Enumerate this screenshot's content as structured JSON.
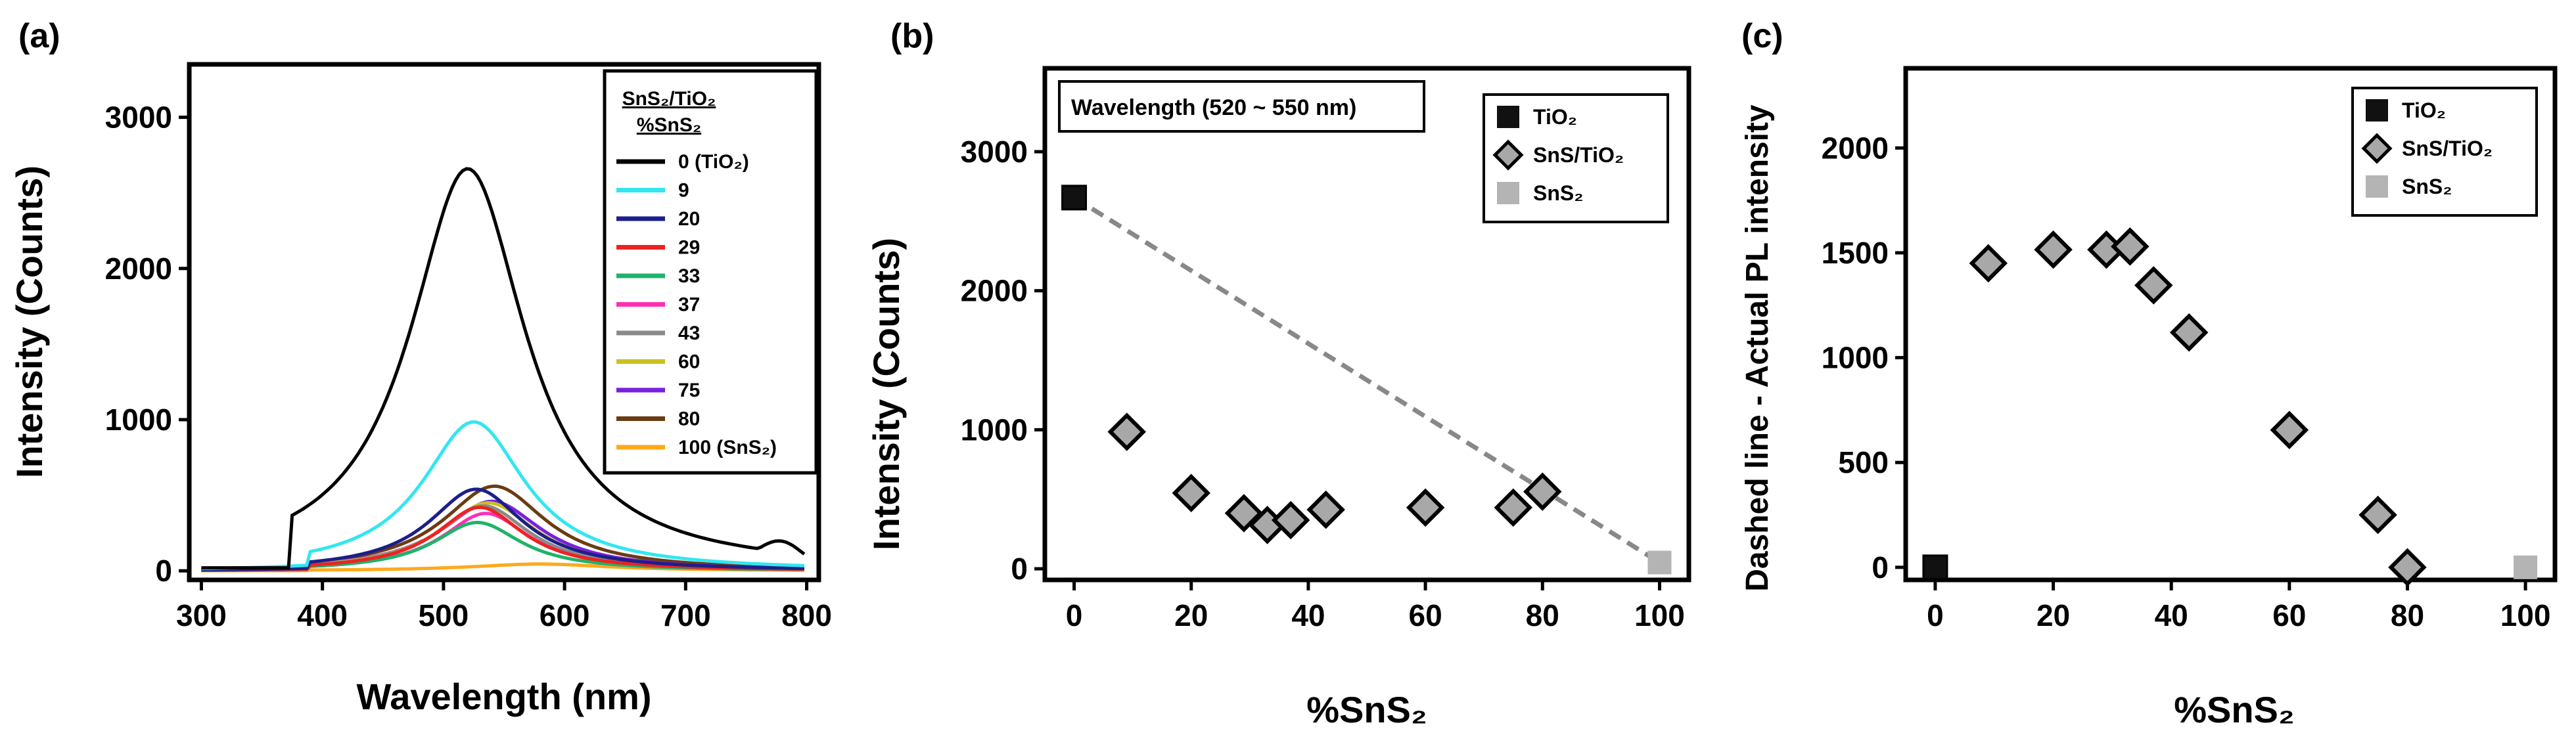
{
  "chart_data": [
    {
      "panel": "(a)",
      "type": "line",
      "xlabel": "Wavelength (nm)",
      "ylabel": "Intensity (Counts)",
      "xlim": [
        290,
        810
      ],
      "ylim": [
        -60,
        3350
      ],
      "xticks": [
        300,
        400,
        500,
        600,
        700,
        800
      ],
      "yticks": [
        0,
        1000,
        2000,
        3000
      ],
      "legend": {
        "title": "SnS₂/TiO₂",
        "subtitle": "%SnS₂",
        "placement": "top-right",
        "entries": [
          {
            "label": "0 (TiO₂)",
            "color": "#000000",
            "peak": 2660,
            "center": 520,
            "width": 58
          },
          {
            "label": "9",
            "color": "#33e6f0",
            "peak": 985,
            "center": 525,
            "width": 52
          },
          {
            "label": "20",
            "color": "#1c1f8a",
            "peak": 540,
            "center": 527,
            "width": 48
          },
          {
            "label": "29",
            "color": "#ee2222",
            "peak": 420,
            "center": 530,
            "width": 44
          },
          {
            "label": "33",
            "color": "#1fb36a",
            "peak": 320,
            "center": 528,
            "width": 44
          },
          {
            "label": "37",
            "color": "#ff2fb5",
            "peak": 380,
            "center": 535,
            "width": 44
          },
          {
            "label": "43",
            "color": "#8a8a8a",
            "peak": 430,
            "center": 533,
            "width": 46
          },
          {
            "label": "60",
            "color": "#c8c21e",
            "peak": 450,
            "center": 537,
            "width": 48
          },
          {
            "label": "75",
            "color": "#7a20dd",
            "peak": 460,
            "center": 540,
            "width": 50
          },
          {
            "label": "80",
            "color": "#6b3b12",
            "peak": 560,
            "center": 542,
            "width": 52
          },
          {
            "label": "100 (SnS₂)",
            "color": "#ffa91a",
            "peak": 45,
            "center": 580,
            "width": 70
          }
        ]
      }
    },
    {
      "panel": "(b)",
      "type": "scatter",
      "xlabel": "%SnS₂",
      "ylabel": "Intensity (Counts)",
      "annotation": "Wavelength (520 ~ 550 nm)",
      "xlim": [
        -5,
        105
      ],
      "ylim": [
        -80,
        3600
      ],
      "xticks": [
        0,
        20,
        40,
        60,
        80,
        100
      ],
      "yticks": [
        0,
        1000,
        2000,
        3000
      ],
      "legend_placement": "top-right",
      "series": [
        {
          "name": "TiO₂",
          "marker": "square",
          "color": "#111111",
          "x": [
            0
          ],
          "y": [
            2670
          ]
        },
        {
          "name": "SnS/TiO₂",
          "marker": "diamond",
          "color": "#a8a8a8",
          "x": [
            9,
            20,
            29,
            33,
            37,
            43,
            60,
            75,
            80
          ],
          "y": [
            985,
            545,
            400,
            315,
            350,
            425,
            440,
            440,
            555
          ]
        },
        {
          "name": "SnS₂",
          "marker": "square",
          "color": "#b4b4b4",
          "x": [
            100
          ],
          "y": [
            45
          ]
        }
      ],
      "dashed_line": {
        "x": [
          0,
          100
        ],
        "y": [
          2670,
          45
        ]
      }
    },
    {
      "panel": "(c)",
      "type": "scatter",
      "xlabel": "%SnS₂",
      "ylabel": "Dashed line - Actual PL intensity",
      "xlim": [
        -5,
        105
      ],
      "ylim": [
        -60,
        2380
      ],
      "xticks": [
        0,
        20,
        40,
        60,
        80,
        100
      ],
      "yticks": [
        0,
        500,
        1000,
        1500,
        2000
      ],
      "legend_placement": "top-right",
      "series": [
        {
          "name": "TiO₂",
          "marker": "square",
          "color": "#111111",
          "x": [
            0
          ],
          "y": [
            0
          ]
        },
        {
          "name": "SnS/TiO₂",
          "marker": "diamond",
          "color": "#a8a8a8",
          "x": [
            9,
            20,
            29,
            33,
            37,
            43,
            60,
            75,
            80
          ],
          "y": [
            1450,
            1515,
            1515,
            1530,
            1345,
            1120,
            655,
            250,
            0
          ]
        },
        {
          "name": "SnS₂",
          "marker": "square",
          "color": "#b4b4b4",
          "x": [
            100
          ],
          "y": [
            0
          ]
        }
      ]
    }
  ]
}
